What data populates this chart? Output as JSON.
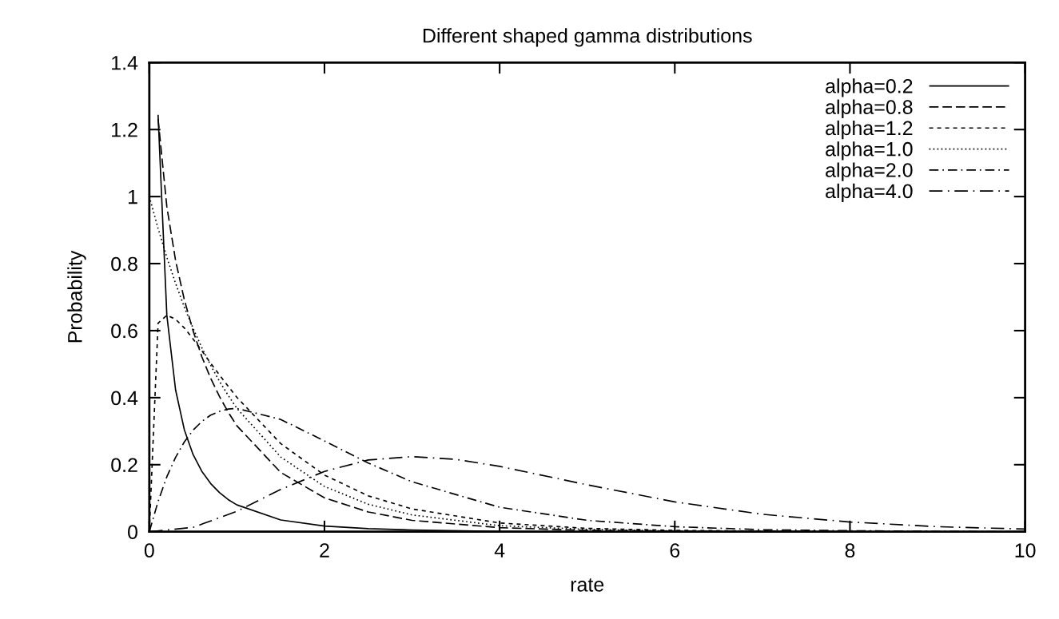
{
  "chart_data": {
    "type": "line",
    "title": "Different shaped gamma distributions",
    "xlabel": "rate",
    "ylabel": "Probability",
    "xlim": [
      0,
      10
    ],
    "ylim": [
      0,
      1.4
    ],
    "xticks": [
      0,
      2,
      4,
      6,
      8,
      10
    ],
    "yticks": [
      0,
      0.2,
      0.4,
      0.6,
      0.8,
      1,
      1.2,
      1.4
    ],
    "grid": false,
    "legend": "top right",
    "marker": "none",
    "series": [
      {
        "name": "alpha=0.2",
        "color": "#000000",
        "line_style": "solid",
        "x": [
          0.1,
          0.2,
          0.3,
          0.4,
          0.5,
          0.6,
          0.7,
          0.8,
          0.9,
          1,
          1.5,
          2,
          2.5,
          3,
          4,
          5,
          6,
          7,
          8,
          9,
          10
        ],
        "values": [
          1.244,
          0.646,
          0.423,
          0.304,
          0.23,
          0.18,
          0.144,
          0.117,
          0.096,
          0.08,
          0.035,
          0.017,
          0.009,
          0.005,
          0.001,
          0,
          0,
          0,
          0,
          0,
          0
        ]
      },
      {
        "name": "alpha=0.8",
        "color": "#000000",
        "line_style": "dashed",
        "x": [
          0.1,
          0.2,
          0.3,
          0.4,
          0.5,
          0.6,
          0.7,
          0.8,
          0.9,
          1,
          1.5,
          2,
          2.5,
          3,
          4,
          5,
          6,
          7,
          8,
          9,
          10
        ],
        "values": [
          1.232,
          0.97,
          0.809,
          0.692,
          0.599,
          0.522,
          0.458,
          0.404,
          0.357,
          0.316,
          0.177,
          0.101,
          0.059,
          0.034,
          0.012,
          0.004,
          0.002,
          0.001,
          0,
          0,
          0
        ]
      },
      {
        "name": "alpha=1.2",
        "color": "#000000",
        "line_style": "short dashed",
        "x": [
          0,
          0.1,
          0.2,
          0.3,
          0.4,
          0.5,
          0.6,
          0.7,
          0.8,
          0.9,
          1,
          1.5,
          2,
          2.5,
          3,
          4,
          5,
          6,
          7,
          8,
          9,
          10
        ],
        "values": [
          0,
          0.622,
          0.646,
          0.634,
          0.608,
          0.575,
          0.54,
          0.503,
          0.468,
          0.434,
          0.401,
          0.263,
          0.169,
          0.107,
          0.068,
          0.026,
          0.01,
          0.004,
          0.002,
          0.001,
          0,
          0
        ]
      },
      {
        "name": "alpha=1.0",
        "color": "#000000",
        "line_style": "dotted",
        "x": [
          0,
          0.1,
          0.2,
          0.3,
          0.4,
          0.5,
          0.6,
          0.7,
          0.8,
          0.9,
          1,
          1.5,
          2,
          2.5,
          3,
          4,
          5,
          6,
          7,
          8,
          9,
          10
        ],
        "values": [
          1,
          0.905,
          0.819,
          0.741,
          0.67,
          0.607,
          0.549,
          0.497,
          0.449,
          0.407,
          0.368,
          0.223,
          0.135,
          0.082,
          0.05,
          0.018,
          0.007,
          0.002,
          0.001,
          0,
          0,
          0
        ]
      },
      {
        "name": "alpha=2.0",
        "color": "#000000",
        "line_style": "dashdot",
        "x": [
          0,
          0.1,
          0.2,
          0.3,
          0.4,
          0.5,
          0.6,
          0.7,
          0.8,
          0.9,
          1,
          1.5,
          2,
          2.5,
          3,
          4,
          5,
          6,
          7,
          8,
          9,
          10
        ],
        "values": [
          0,
          0.09,
          0.164,
          0.222,
          0.268,
          0.303,
          0.329,
          0.348,
          0.359,
          0.366,
          0.368,
          0.335,
          0.271,
          0.205,
          0.149,
          0.073,
          0.034,
          0.015,
          0.006,
          0.003,
          0.001,
          0
        ]
      },
      {
        "name": "alpha=4.0",
        "color": "#000000",
        "line_style": "long dashdot",
        "x": [
          0,
          0.5,
          1,
          1.5,
          2,
          2.5,
          3,
          3.5,
          4,
          5,
          6,
          7,
          8,
          9,
          10
        ],
        "values": [
          0,
          0.013,
          0.061,
          0.126,
          0.18,
          0.214,
          0.224,
          0.216,
          0.195,
          0.14,
          0.089,
          0.052,
          0.029,
          0.015,
          0.008
        ]
      }
    ]
  }
}
